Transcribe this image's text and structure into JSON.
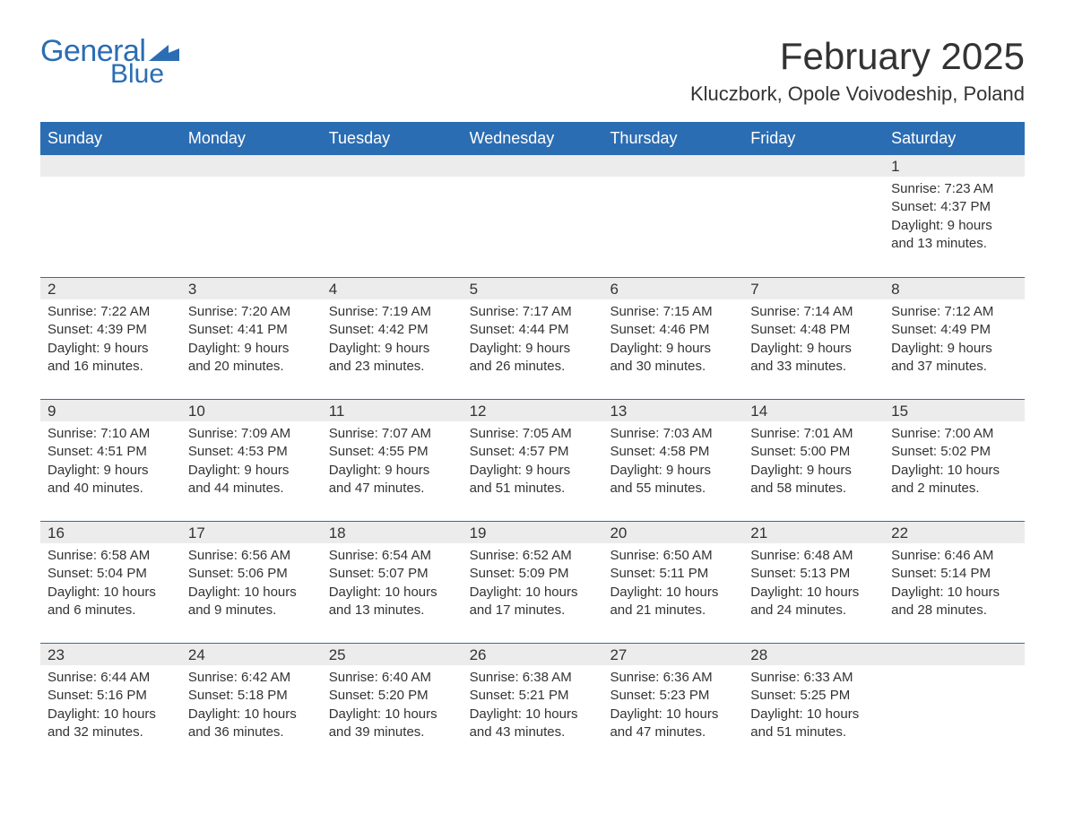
{
  "logo": {
    "general": "General",
    "blue": "Blue",
    "flag_color": "#2b6db3"
  },
  "title": "February 2025",
  "location": "Kluczbork, Opole Voivodeship, Poland",
  "colors": {
    "brand_blue": "#2b6db3",
    "strip_gray": "#ececec",
    "text": "#333333",
    "background": "#ffffff"
  },
  "day_headers": [
    "Sunday",
    "Monday",
    "Tuesday",
    "Wednesday",
    "Thursday",
    "Friday",
    "Saturday"
  ],
  "weeks": [
    [
      {
        "empty": true
      },
      {
        "empty": true
      },
      {
        "empty": true
      },
      {
        "empty": true
      },
      {
        "empty": true
      },
      {
        "empty": true
      },
      {
        "day": "1",
        "sunrise": "Sunrise: 7:23 AM",
        "sunset": "Sunset: 4:37 PM",
        "daylight1": "Daylight: 9 hours",
        "daylight2": "and 13 minutes."
      }
    ],
    [
      {
        "day": "2",
        "sunrise": "Sunrise: 7:22 AM",
        "sunset": "Sunset: 4:39 PM",
        "daylight1": "Daylight: 9 hours",
        "daylight2": "and 16 minutes."
      },
      {
        "day": "3",
        "sunrise": "Sunrise: 7:20 AM",
        "sunset": "Sunset: 4:41 PM",
        "daylight1": "Daylight: 9 hours",
        "daylight2": "and 20 minutes."
      },
      {
        "day": "4",
        "sunrise": "Sunrise: 7:19 AM",
        "sunset": "Sunset: 4:42 PM",
        "daylight1": "Daylight: 9 hours",
        "daylight2": "and 23 minutes."
      },
      {
        "day": "5",
        "sunrise": "Sunrise: 7:17 AM",
        "sunset": "Sunset: 4:44 PM",
        "daylight1": "Daylight: 9 hours",
        "daylight2": "and 26 minutes."
      },
      {
        "day": "6",
        "sunrise": "Sunrise: 7:15 AM",
        "sunset": "Sunset: 4:46 PM",
        "daylight1": "Daylight: 9 hours",
        "daylight2": "and 30 minutes."
      },
      {
        "day": "7",
        "sunrise": "Sunrise: 7:14 AM",
        "sunset": "Sunset: 4:48 PM",
        "daylight1": "Daylight: 9 hours",
        "daylight2": "and 33 minutes."
      },
      {
        "day": "8",
        "sunrise": "Sunrise: 7:12 AM",
        "sunset": "Sunset: 4:49 PM",
        "daylight1": "Daylight: 9 hours",
        "daylight2": "and 37 minutes."
      }
    ],
    [
      {
        "day": "9",
        "sunrise": "Sunrise: 7:10 AM",
        "sunset": "Sunset: 4:51 PM",
        "daylight1": "Daylight: 9 hours",
        "daylight2": "and 40 minutes."
      },
      {
        "day": "10",
        "sunrise": "Sunrise: 7:09 AM",
        "sunset": "Sunset: 4:53 PM",
        "daylight1": "Daylight: 9 hours",
        "daylight2": "and 44 minutes."
      },
      {
        "day": "11",
        "sunrise": "Sunrise: 7:07 AM",
        "sunset": "Sunset: 4:55 PM",
        "daylight1": "Daylight: 9 hours",
        "daylight2": "and 47 minutes."
      },
      {
        "day": "12",
        "sunrise": "Sunrise: 7:05 AM",
        "sunset": "Sunset: 4:57 PM",
        "daylight1": "Daylight: 9 hours",
        "daylight2": "and 51 minutes."
      },
      {
        "day": "13",
        "sunrise": "Sunrise: 7:03 AM",
        "sunset": "Sunset: 4:58 PM",
        "daylight1": "Daylight: 9 hours",
        "daylight2": "and 55 minutes."
      },
      {
        "day": "14",
        "sunrise": "Sunrise: 7:01 AM",
        "sunset": "Sunset: 5:00 PM",
        "daylight1": "Daylight: 9 hours",
        "daylight2": "and 58 minutes."
      },
      {
        "day": "15",
        "sunrise": "Sunrise: 7:00 AM",
        "sunset": "Sunset: 5:02 PM",
        "daylight1": "Daylight: 10 hours",
        "daylight2": "and 2 minutes."
      }
    ],
    [
      {
        "day": "16",
        "sunrise": "Sunrise: 6:58 AM",
        "sunset": "Sunset: 5:04 PM",
        "daylight1": "Daylight: 10 hours",
        "daylight2": "and 6 minutes."
      },
      {
        "day": "17",
        "sunrise": "Sunrise: 6:56 AM",
        "sunset": "Sunset: 5:06 PM",
        "daylight1": "Daylight: 10 hours",
        "daylight2": "and 9 minutes."
      },
      {
        "day": "18",
        "sunrise": "Sunrise: 6:54 AM",
        "sunset": "Sunset: 5:07 PM",
        "daylight1": "Daylight: 10 hours",
        "daylight2": "and 13 minutes."
      },
      {
        "day": "19",
        "sunrise": "Sunrise: 6:52 AM",
        "sunset": "Sunset: 5:09 PM",
        "daylight1": "Daylight: 10 hours",
        "daylight2": "and 17 minutes."
      },
      {
        "day": "20",
        "sunrise": "Sunrise: 6:50 AM",
        "sunset": "Sunset: 5:11 PM",
        "daylight1": "Daylight: 10 hours",
        "daylight2": "and 21 minutes."
      },
      {
        "day": "21",
        "sunrise": "Sunrise: 6:48 AM",
        "sunset": "Sunset: 5:13 PM",
        "daylight1": "Daylight: 10 hours",
        "daylight2": "and 24 minutes."
      },
      {
        "day": "22",
        "sunrise": "Sunrise: 6:46 AM",
        "sunset": "Sunset: 5:14 PM",
        "daylight1": "Daylight: 10 hours",
        "daylight2": "and 28 minutes."
      }
    ],
    [
      {
        "day": "23",
        "sunrise": "Sunrise: 6:44 AM",
        "sunset": "Sunset: 5:16 PM",
        "daylight1": "Daylight: 10 hours",
        "daylight2": "and 32 minutes."
      },
      {
        "day": "24",
        "sunrise": "Sunrise: 6:42 AM",
        "sunset": "Sunset: 5:18 PM",
        "daylight1": "Daylight: 10 hours",
        "daylight2": "and 36 minutes."
      },
      {
        "day": "25",
        "sunrise": "Sunrise: 6:40 AM",
        "sunset": "Sunset: 5:20 PM",
        "daylight1": "Daylight: 10 hours",
        "daylight2": "and 39 minutes."
      },
      {
        "day": "26",
        "sunrise": "Sunrise: 6:38 AM",
        "sunset": "Sunset: 5:21 PM",
        "daylight1": "Daylight: 10 hours",
        "daylight2": "and 43 minutes."
      },
      {
        "day": "27",
        "sunrise": "Sunrise: 6:36 AM",
        "sunset": "Sunset: 5:23 PM",
        "daylight1": "Daylight: 10 hours",
        "daylight2": "and 47 minutes."
      },
      {
        "day": "28",
        "sunrise": "Sunrise: 6:33 AM",
        "sunset": "Sunset: 5:25 PM",
        "daylight1": "Daylight: 10 hours",
        "daylight2": "and 51 minutes."
      },
      {
        "empty": true
      }
    ]
  ]
}
